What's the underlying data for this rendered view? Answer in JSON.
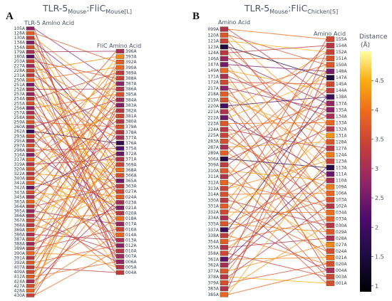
{
  "panel_labels": [
    "A",
    "B"
  ],
  "colorbar": {
    "title": "Distance",
    "unit": "(Å)",
    "ticks": [
      "1",
      "1.5",
      "2",
      "2.5",
      "3",
      "3.5",
      "4",
      "4.5"
    ],
    "tick_values": [
      1,
      1.5,
      2,
      2.5,
      3,
      3.5,
      4,
      4.5
    ],
    "range": [
      0.9,
      5.0
    ],
    "colorscale": "inferno"
  },
  "chart_data": [
    {
      "type": "parallel-bipartite",
      "panel": "A",
      "title": {
        "main1": "TLR-5",
        "sub1": "Mouse",
        "main2": ":FliC",
        "sub2": "Mouse[L]"
      },
      "left_axis_title": "TLR-5 Amino Acid",
      "right_axis_title": "FliC Amino Acid",
      "left": [
        "105A",
        "128A",
        "130A",
        "134A",
        "154A",
        "179A",
        "180A",
        "203A",
        "227A",
        "228A",
        "231A",
        "250A",
        "251A",
        "252A",
        "253A",
        "254A",
        "255A",
        "256A",
        "257A",
        "258A",
        "259A",
        "260A",
        "262A",
        "293A",
        "295A",
        "297A",
        "298A",
        "316A",
        "317A",
        "319A",
        "320A",
        "322A",
        "340A",
        "341A",
        "342A",
        "343A",
        "345A",
        "363A",
        "364A",
        "365A",
        "366A",
        "367A",
        "368A",
        "369A",
        "386A",
        "387A",
        "388A",
        "389A",
        "390A",
        "391A",
        "392A",
        "407A",
        "409A",
        "412A",
        "424A",
        "427A",
        "428A",
        "430A"
      ],
      "right": [
        "396A",
        "393A",
        "392A",
        "390A",
        "389A",
        "388A",
        "387A",
        "386A",
        "385A",
        "384A",
        "383A",
        "382A",
        "381A",
        "380A",
        "379A",
        "378A",
        "377A",
        "376A",
        "375A",
        "372A",
        "371A",
        "369A",
        "368A",
        "366A",
        "365A",
        "363A",
        "027A",
        "024A",
        "023A",
        "021A",
        "020A",
        "018A",
        "017A",
        "016A",
        "014A",
        "013A",
        "012A",
        "010A",
        "007A",
        "006A",
        "005A",
        "004A"
      ],
      "links": [
        [
          0,
          40,
          3.1
        ],
        [
          0,
          6,
          2.7
        ],
        [
          1,
          22,
          4.0
        ],
        [
          1,
          2,
          3.8
        ],
        [
          2,
          35,
          3.3
        ],
        [
          2,
          9,
          4.2
        ],
        [
          3,
          23,
          4.4
        ],
        [
          3,
          10,
          2.6
        ],
        [
          4,
          14,
          3.6
        ],
        [
          4,
          30,
          4.1
        ],
        [
          5,
          0,
          3.0
        ],
        [
          5,
          26,
          3.7
        ],
        [
          6,
          18,
          2.2
        ],
        [
          6,
          33,
          4.3
        ],
        [
          7,
          5,
          3.4
        ],
        [
          7,
          29,
          4.6
        ],
        [
          8,
          12,
          4.0
        ],
        [
          8,
          38,
          2.9
        ],
        [
          9,
          20,
          3.5
        ],
        [
          9,
          1,
          4.2
        ],
        [
          10,
          15,
          3.2
        ],
        [
          10,
          27,
          4.5
        ],
        [
          11,
          3,
          4.0
        ],
        [
          11,
          34,
          3.9
        ],
        [
          12,
          24,
          2.5
        ],
        [
          12,
          11,
          4.7
        ],
        [
          13,
          7,
          3.1
        ],
        [
          13,
          31,
          4.1
        ],
        [
          14,
          16,
          3.8
        ],
        [
          14,
          39,
          2.8
        ],
        [
          15,
          21,
          4.4
        ],
        [
          15,
          4,
          3.3
        ],
        [
          16,
          28,
          3.6
        ],
        [
          16,
          13,
          4.6
        ],
        [
          17,
          36,
          2.7
        ],
        [
          17,
          8,
          3.9
        ],
        [
          18,
          19,
          4.2
        ],
        [
          18,
          32,
          3.0
        ],
        [
          19,
          2,
          4.8
        ],
        [
          19,
          25,
          3.4
        ],
        [
          20,
          14,
          3.7
        ],
        [
          20,
          37,
          4.0
        ],
        [
          21,
          9,
          2.9
        ],
        [
          21,
          22,
          4.3
        ],
        [
          22,
          17,
          1.8
        ],
        [
          22,
          30,
          3.2
        ],
        [
          23,
          5,
          4.1
        ],
        [
          23,
          26,
          3.5
        ],
        [
          24,
          12,
          4.5
        ],
        [
          24,
          35,
          3.0
        ],
        [
          25,
          23,
          4.2
        ],
        [
          25,
          0,
          3.6
        ],
        [
          26,
          18,
          3.3
        ],
        [
          26,
          40,
          4.4
        ],
        [
          27,
          11,
          4.0
        ],
        [
          27,
          29,
          2.6
        ],
        [
          28,
          3,
          3.9
        ],
        [
          28,
          33,
          4.6
        ],
        [
          29,
          20,
          3.1
        ],
        [
          29,
          15,
          4.2
        ],
        [
          30,
          38,
          3.7
        ],
        [
          30,
          6,
          4.0
        ],
        [
          31,
          24,
          4.3
        ],
        [
          31,
          13,
          3.2
        ],
        [
          32,
          31,
          4.1
        ],
        [
          32,
          10,
          3.5
        ],
        [
          33,
          27,
          3.8
        ],
        [
          33,
          1,
          4.5
        ],
        [
          34,
          19,
          2.4
        ],
        [
          34,
          36,
          4.0
        ],
        [
          35,
          8,
          3.6
        ],
        [
          35,
          28,
          4.3
        ],
        [
          36,
          16,
          3.0
        ],
        [
          36,
          34,
          4.1
        ],
        [
          37,
          41,
          3.9
        ],
        [
          37,
          21,
          4.6
        ],
        [
          38,
          25,
          3.3
        ],
        [
          38,
          7,
          4.2
        ],
        [
          39,
          32,
          2.8
        ],
        [
          39,
          4,
          3.7
        ],
        [
          40,
          22,
          4.4
        ],
        [
          40,
          39,
          3.1
        ],
        [
          41,
          30,
          4.0
        ],
        [
          41,
          12,
          3.5
        ],
        [
          42,
          17,
          4.7
        ],
        [
          42,
          37,
          3.2
        ],
        [
          43,
          9,
          3.8
        ],
        [
          43,
          26,
          4.4
        ],
        [
          44,
          35,
          3.0
        ],
        [
          44,
          2,
          4.1
        ],
        [
          45,
          23,
          3.6
        ],
        [
          45,
          40,
          4.3
        ],
        [
          46,
          14,
          4.0
        ],
        [
          46,
          29,
          2.9
        ],
        [
          47,
          5,
          4.5
        ],
        [
          47,
          33,
          3.4
        ],
        [
          48,
          20,
          3.9
        ],
        [
          48,
          38,
          4.2
        ],
        [
          49,
          11,
          3.2
        ],
        [
          49,
          27,
          4.6
        ],
        [
          50,
          36,
          3.7
        ],
        [
          50,
          19,
          4.1
        ],
        [
          51,
          41,
          3.3
        ],
        [
          51,
          24,
          4.4
        ],
        [
          52,
          31,
          4.0
        ],
        [
          52,
          15,
          3.5
        ],
        [
          53,
          6,
          4.2
        ],
        [
          53,
          39,
          3.8
        ],
        [
          54,
          28,
          3.0
        ],
        [
          54,
          18,
          4.5
        ],
        [
          55,
          34,
          4.1
        ],
        [
          55,
          10,
          3.6
        ],
        [
          56,
          3,
          4.3
        ],
        [
          56,
          25,
          3.9
        ],
        [
          57,
          37,
          4.0
        ],
        [
          57,
          21,
          3.4
        ]
      ]
    },
    {
      "type": "parallel-bipartite",
      "panel": "B",
      "title": {
        "main1": "TLR-5",
        "sub1": "Mouse",
        "main2": ":FliC",
        "sub2": "Chicken[S]"
      },
      "left_axis_title": "Amino Acid",
      "right_axis_title": "Amino Acid",
      "left": [
        "099A",
        "120A",
        "121A",
        "123A",
        "124A",
        "146A",
        "147A",
        "149A",
        "171A",
        "172A",
        "217A",
        "218A",
        "219A",
        "220A",
        "221A",
        "222A",
        "223A",
        "224A",
        "225A",
        "283A",
        "287A",
        "289A",
        "306A",
        "309A",
        "310A",
        "311A",
        "312A",
        "313A",
        "314A",
        "330A",
        "331A",
        "332A",
        "334A",
        "335A",
        "337A",
        "338A",
        "354A",
        "355A",
        "358A",
        "361A",
        "362A",
        "377A",
        "378A",
        "379A",
        "383A",
        "385A"
      ],
      "right": [
        "155A",
        "154A",
        "152A",
        "151A",
        "150A",
        "148A",
        "147A",
        "145A",
        "144A",
        "138A",
        "137A",
        "135A",
        "134A",
        "133A",
        "132A",
        "131A",
        "128A",
        "127A",
        "124A",
        "123A",
        "113A",
        "111A",
        "110A",
        "109A",
        "106A",
        "103A",
        "102A",
        "034A",
        "033A",
        "030A",
        "029A",
        "028A",
        "027A",
        "024A",
        "021A",
        "020A",
        "004A",
        "003A",
        "001A"
      ],
      "links": [
        [
          0,
          0,
          4.0
        ],
        [
          0,
          9,
          3.1
        ],
        [
          1,
          4,
          3.7
        ],
        [
          1,
          13,
          4.3
        ],
        [
          2,
          19,
          3.4
        ],
        [
          2,
          2,
          4.5
        ],
        [
          3,
          6,
          1.5
        ],
        [
          3,
          16,
          3.9
        ],
        [
          4,
          1,
          3.2
        ],
        [
          4,
          22,
          4.1
        ],
        [
          5,
          10,
          2.8
        ],
        [
          5,
          3,
          3.6
        ],
        [
          6,
          25,
          4.2
        ],
        [
          6,
          5,
          2.5
        ],
        [
          7,
          14,
          3.9
        ],
        [
          7,
          8,
          4.4
        ],
        [
          8,
          12,
          3.0
        ],
        [
          8,
          27,
          4.0
        ],
        [
          9,
          7,
          3.5
        ],
        [
          9,
          20,
          4.6
        ],
        [
          10,
          29,
          3.3
        ],
        [
          10,
          11,
          2.7
        ],
        [
          11,
          18,
          4.1
        ],
        [
          11,
          4,
          3.8
        ],
        [
          12,
          33,
          3.6
        ],
        [
          12,
          15,
          4.3
        ],
        [
          13,
          9,
          2.0
        ],
        [
          13,
          24,
          3.9
        ],
        [
          14,
          2,
          4.2
        ],
        [
          14,
          36,
          3.1
        ],
        [
          15,
          21,
          2.4
        ],
        [
          15,
          6,
          4.4
        ],
        [
          16,
          30,
          3.7
        ],
        [
          16,
          13,
          4.0
        ],
        [
          17,
          17,
          3.2
        ],
        [
          17,
          35,
          4.5
        ],
        [
          18,
          10,
          3.9
        ],
        [
          18,
          26,
          3.4
        ],
        [
          19,
          23,
          4.1
        ],
        [
          19,
          1,
          3.6
        ],
        [
          20,
          31,
          3.0
        ],
        [
          20,
          16,
          4.3
        ],
        [
          21,
          5,
          3.8
        ],
        [
          21,
          28,
          4.2
        ],
        [
          22,
          20,
          1.6
        ],
        [
          22,
          12,
          3.5
        ],
        [
          23,
          34,
          4.0
        ],
        [
          23,
          8,
          3.3
        ],
        [
          24,
          22,
          4.4
        ],
        [
          24,
          37,
          3.7
        ],
        [
          25,
          14,
          3.1
        ],
        [
          25,
          3,
          4.1
        ],
        [
          26,
          26,
          3.9
        ],
        [
          26,
          32,
          4.6
        ],
        [
          27,
          11,
          3.4
        ],
        [
          27,
          19,
          4.2
        ],
        [
          28,
          38,
          3.6
        ],
        [
          28,
          24,
          4.0
        ],
        [
          29,
          7,
          4.3
        ],
        [
          29,
          29,
          3.2
        ],
        [
          30,
          33,
          3.8
        ],
        [
          30,
          18,
          4.4
        ],
        [
          31,
          0,
          3.5
        ],
        [
          31,
          27,
          4.1
        ],
        [
          32,
          36,
          3.0
        ],
        [
          32,
          15,
          4.5
        ],
        [
          33,
          21,
          3.7
        ],
        [
          33,
          30,
          4.2
        ],
        [
          34,
          9,
          1.9
        ],
        [
          34,
          25,
          3.6
        ],
        [
          35,
          35,
          4.0
        ],
        [
          35,
          17,
          3.3
        ],
        [
          36,
          4,
          4.4
        ],
        [
          36,
          28,
          3.8
        ],
        [
          37,
          31,
          3.1
        ],
        [
          37,
          23,
          4.3
        ],
        [
          38,
          13,
          3.9
        ],
        [
          38,
          37,
          3.5
        ],
        [
          39,
          20,
          2.3
        ],
        [
          39,
          34,
          4.1
        ],
        [
          40,
          2,
          3.4
        ],
        [
          40,
          22,
          3.0
        ],
        [
          41,
          32,
          4.2
        ],
        [
          41,
          16,
          3.7
        ],
        [
          42,
          38,
          4.5
        ],
        [
          42,
          26,
          3.2
        ],
        [
          43,
          10,
          4.0
        ],
        [
          43,
          35,
          3.6
        ],
        [
          44,
          29,
          4.3
        ],
        [
          44,
          5,
          3.1
        ],
        [
          45,
          36,
          3.9
        ],
        [
          45,
          19,
          4.4
        ]
      ]
    }
  ]
}
